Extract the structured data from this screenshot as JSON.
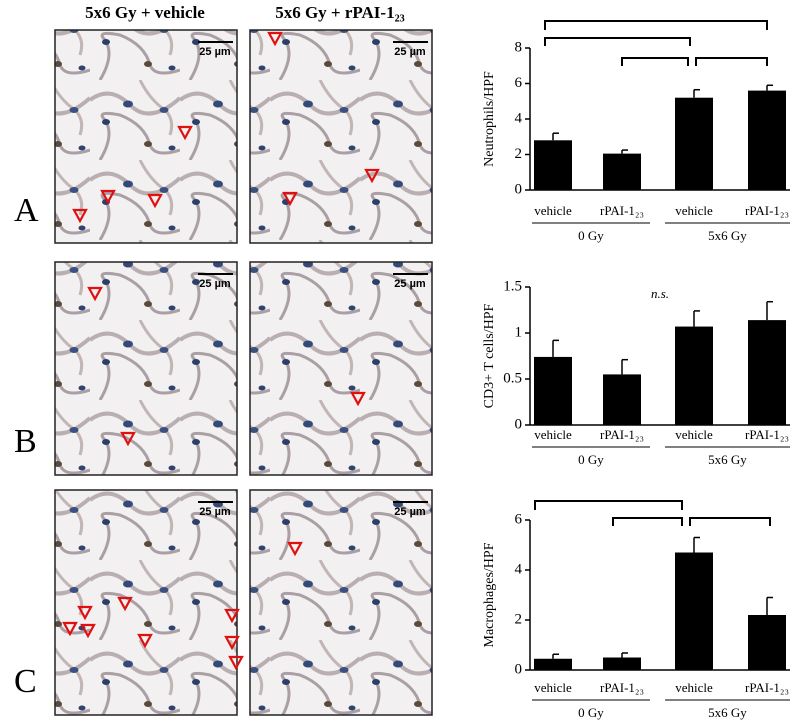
{
  "headers": [
    "5x6 Gy + vehicle",
    "5x6 Gy + rPAI-1₂₃"
  ],
  "panels": [
    "A",
    "B",
    "C"
  ],
  "images": [
    {
      "scale_bar": "25 µm"
    },
    {
      "scale_bar": "25 µm"
    },
    {
      "scale_bar": "25 µm"
    },
    {
      "scale_bar": "25 µm"
    },
    {
      "scale_bar": "25 µm"
    },
    {
      "scale_bar": "25 µm"
    }
  ],
  "chart_data": [
    {
      "type": "bar",
      "ylabel": "Neutrophils/HPF",
      "categories": [
        "vehicle",
        "rPAI-1₂₃",
        "vehicle",
        "rPAI-1₂₃"
      ],
      "groups": [
        "0 Gy",
        "5x6 Gy"
      ],
      "values": [
        2.8,
        2.05,
        5.2,
        5.6
      ],
      "errors": [
        0.4,
        0.2,
        0.45,
        0.3
      ],
      "color": "#000000",
      "ylim": [
        0,
        8
      ],
      "yticks": [
        0,
        2,
        4,
        6,
        8
      ]
    },
    {
      "type": "bar",
      "ylabel": "CD3+ T cells/HPF",
      "annotation": "n.s.",
      "categories": [
        "vehicle",
        "rPAI-1₂₃",
        "vehicle",
        "rPAI-1₂₃"
      ],
      "groups": [
        "0 Gy",
        "5x6 Gy"
      ],
      "values": [
        0.74,
        0.55,
        1.07,
        1.14
      ],
      "errors": [
        0.18,
        0.16,
        0.17,
        0.2
      ],
      "color": "#000000",
      "ylim": [
        0,
        1.5
      ],
      "yticks": [
        0,
        0.5,
        1,
        1.5
      ]
    },
    {
      "type": "bar",
      "ylabel": "Macrophages/HPF",
      "categories": [
        "vehicle",
        "rPAI-1₂₃",
        "vehicle",
        "rPAI-1₂₃"
      ],
      "groups": [
        "0 Gy",
        "5x6 Gy"
      ],
      "values": [
        0.45,
        0.5,
        4.7,
        2.2
      ],
      "errors": [
        0.18,
        0.18,
        0.6,
        0.7
      ],
      "color": "#000000",
      "ylim": [
        0,
        6
      ],
      "yticks": [
        0,
        2,
        4,
        6
      ]
    }
  ]
}
